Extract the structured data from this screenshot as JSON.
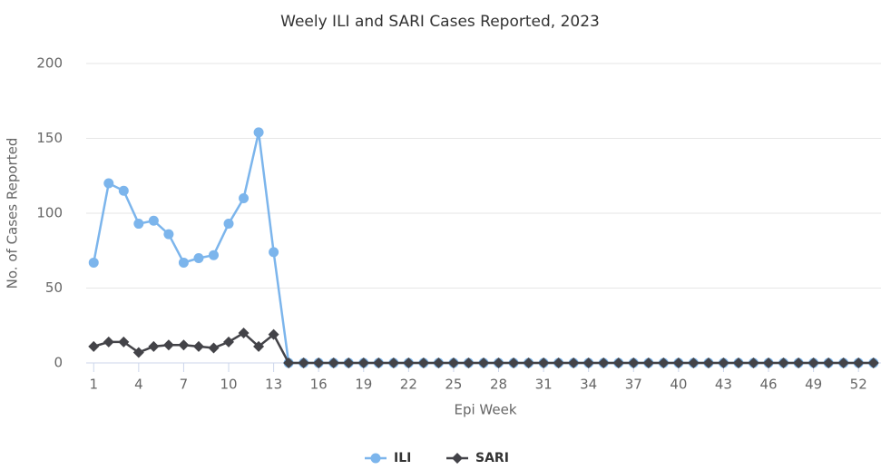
{
  "chart_data": {
    "type": "line",
    "title": "Weely ILI and SARI Cases Reported, 2023",
    "x_label": "Epi Week",
    "y_label": "No. of Cases Reported",
    "x": [
      1,
      2,
      3,
      4,
      5,
      6,
      7,
      8,
      9,
      10,
      11,
      12,
      13,
      14,
      15,
      16,
      17,
      18,
      19,
      20,
      21,
      22,
      23,
      24,
      25,
      26,
      27,
      28,
      29,
      30,
      31,
      32,
      33,
      34,
      35,
      36,
      37,
      38,
      39,
      40,
      41,
      42,
      43,
      44,
      45,
      46,
      47,
      48,
      49,
      50,
      51,
      52,
      53
    ],
    "xlim": [
      0.5,
      53.5
    ],
    "xticks": [
      1,
      4,
      7,
      10,
      13,
      16,
      19,
      22,
      25,
      28,
      31,
      34,
      37,
      40,
      43,
      46,
      49,
      52
    ],
    "ylim": [
      0,
      200
    ],
    "yticks": [
      0,
      50,
      100,
      150,
      200
    ],
    "grid": true,
    "legend": "bottom",
    "series": [
      {
        "name": "ILI",
        "color": "#7cb5ec",
        "marker": "circle",
        "values": [
          67,
          120,
          115,
          93,
          95,
          86,
          67,
          70,
          72,
          93,
          110,
          154,
          74,
          0,
          0,
          0,
          0,
          0,
          0,
          0,
          0,
          0,
          0,
          0,
          0,
          0,
          0,
          0,
          0,
          0,
          0,
          0,
          0,
          0,
          0,
          0,
          0,
          0,
          0,
          0,
          0,
          0,
          0,
          0,
          0,
          0,
          0,
          0,
          0,
          0,
          0,
          0,
          0
        ]
      },
      {
        "name": "SARI",
        "color": "#434348",
        "marker": "diamond",
        "values": [
          11,
          14,
          14,
          7,
          11,
          12,
          12,
          11,
          10,
          14,
          20,
          11,
          19,
          0,
          0,
          0,
          0,
          0,
          0,
          0,
          0,
          0,
          0,
          0,
          0,
          0,
          0,
          0,
          0,
          0,
          0,
          0,
          0,
          0,
          0,
          0,
          0,
          0,
          0,
          0,
          0,
          0,
          0,
          0,
          0,
          0,
          0,
          0,
          0,
          0,
          0,
          0,
          0
        ]
      }
    ]
  }
}
